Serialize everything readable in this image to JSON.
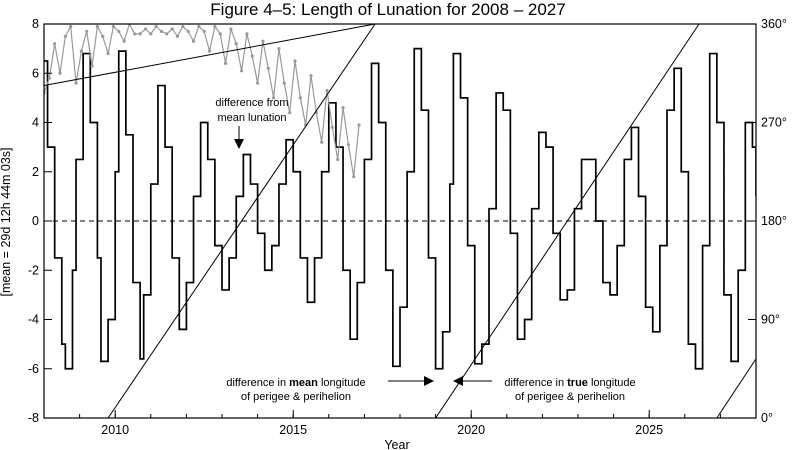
{
  "chart_data": {
    "type": "line",
    "title": "Figure 4–5:  Length of Lunation for 2008 – 2027",
    "xlabel": "Year",
    "ylabel": "[mean = 29d 12h 44m 03s]",
    "xlim": [
      2008.0,
      2028.0
    ],
    "ylim": [
      -8,
      8
    ],
    "x_ticks": [
      2010,
      2015,
      2020,
      2025
    ],
    "y_ticks": [
      -8,
      -6,
      -4,
      -2,
      0,
      2,
      4,
      6,
      8
    ],
    "y_tick_labels": [
      "-8",
      "-6",
      "-4",
      "-2",
      "0",
      "2",
      "4",
      "6",
      "8"
    ],
    "y2_ticks": [
      "0°",
      "90°",
      "180°",
      "270°",
      "360°"
    ],
    "y2lim": [
      0,
      360
    ],
    "zero_line": true,
    "series": [
      {
        "kind": "primary",
        "color": "#000000",
        "x": [
          2008.0,
          2008.1,
          2008.3,
          2008.5,
          2008.6,
          2008.8,
          2008.9,
          2009.1,
          2009.3,
          2009.5,
          2009.6,
          2009.8,
          2010.0,
          2010.1,
          2010.3,
          2010.5,
          2010.7,
          2010.8,
          2011.0,
          2011.2,
          2011.4,
          2011.6,
          2011.8,
          2012.0,
          2012.2,
          2012.4,
          2012.6,
          2012.8,
          2013.0,
          2013.2,
          2013.4,
          2013.6,
          2013.8,
          2014.0,
          2014.2,
          2014.4,
          2014.6,
          2014.8,
          2015.0,
          2015.2,
          2015.4,
          2015.6,
          2015.8,
          2016.0,
          2016.2,
          2016.4,
          2016.6,
          2016.8,
          2017.0,
          2017.2,
          2017.4,
          2017.6,
          2017.8,
          2018.0,
          2018.2,
          2018.4,
          2018.6,
          2018.8,
          2019.0,
          2019.2,
          2019.4,
          2019.5,
          2019.7,
          2019.9,
          2020.1,
          2020.3,
          2020.5,
          2020.7,
          2020.9,
          2021.1,
          2021.3,
          2021.5,
          2021.7,
          2021.9,
          2022.1,
          2022.3,
          2022.5,
          2022.7,
          2022.9,
          2023.1,
          2023.3,
          2023.5,
          2023.7,
          2023.9,
          2024.1,
          2024.3,
          2024.5,
          2024.7,
          2024.9,
          2025.1,
          2025.3,
          2025.5,
          2025.7,
          2025.9,
          2026.1,
          2026.3,
          2026.5,
          2026.7,
          2026.9,
          2027.1,
          2027.3,
          2027.5,
          2027.7,
          2027.9,
          2028.0
        ],
        "y": [
          6.5,
          3.0,
          -1.5,
          -5.0,
          -6.0,
          -2.0,
          2.5,
          6.8,
          4.0,
          -1.5,
          -5.7,
          -4.0,
          2.0,
          6.9,
          3.5,
          -2.5,
          -5.6,
          -3.0,
          1.5,
          5.5,
          3.0,
          -1.5,
          -4.4,
          -2.5,
          1.0,
          4.0,
          2.5,
          -1.0,
          -2.8,
          -1.5,
          1.0,
          2.7,
          1.5,
          -0.5,
          -2.0,
          -1.0,
          1.5,
          3.3,
          2.0,
          -1.5,
          -3.3,
          -1.5,
          2.0,
          4.8,
          3.0,
          -2.0,
          -4.8,
          -2.5,
          2.5,
          6.4,
          4.0,
          -2.0,
          -5.9,
          -3.5,
          2.0,
          7.0,
          4.5,
          -1.5,
          -6.0,
          -4.5,
          1.5,
          6.8,
          5.0,
          -1.0,
          -5.8,
          -5.0,
          0.5,
          5.2,
          4.5,
          -0.5,
          -4.8,
          -4.0,
          0.5,
          3.6,
          3.0,
          -0.5,
          -3.2,
          -2.8,
          0.5,
          2.5,
          2.5,
          0.0,
          -2.5,
          -3.0,
          -1.0,
          2.5,
          3.8,
          1.0,
          -3.5,
          -4.5,
          -1.0,
          4.5,
          6.2,
          2.0,
          -5.0,
          -6.0,
          -1.0,
          6.8,
          4.0,
          -3.0,
          -5.7,
          -2.0,
          4.0,
          3.0,
          1.0
        ]
      },
      {
        "kind": "perigee-sawtooth",
        "color": "#999999",
        "x": [
          2008.0,
          2008.15,
          2008.3,
          2008.45,
          2008.6,
          2008.75,
          2008.9,
          2009.05,
          2009.2,
          2009.35,
          2009.5,
          2009.65,
          2009.8,
          2009.95,
          2010.1,
          2010.25,
          2010.4,
          2010.55,
          2010.7,
          2010.85,
          2011.0,
          2011.15,
          2011.3,
          2011.45,
          2011.6,
          2011.75,
          2011.9,
          2012.05,
          2012.2,
          2012.35,
          2012.5,
          2012.65,
          2012.8,
          2012.95,
          2013.1,
          2013.25,
          2013.4,
          2013.55,
          2013.7,
          2013.85,
          2014.0,
          2014.15,
          2014.3,
          2014.45,
          2014.6,
          2014.75,
          2014.9,
          2015.05,
          2015.2,
          2015.35,
          2015.5,
          2015.65,
          2015.8,
          2015.95,
          2016.1,
          2016.25,
          2016.4,
          2016.55,
          2016.7,
          2016.85
        ],
        "y": [
          5.2,
          5.8,
          7.2,
          6.0,
          7.5,
          7.9,
          5.6,
          6.9,
          7.7,
          6.3,
          7.9,
          7.5,
          6.8,
          7.9,
          7.7,
          7.3,
          8.0,
          7.6,
          7.6,
          7.8,
          7.6,
          7.9,
          7.7,
          7.6,
          7.8,
          7.5,
          7.9,
          7.7,
          7.3,
          7.9,
          7.7,
          6.9,
          7.9,
          7.6,
          6.4,
          7.8,
          7.2,
          6.1,
          7.6,
          6.7,
          5.6,
          7.3,
          6.2,
          5.0,
          7.0,
          5.6,
          4.4,
          6.5,
          5.0,
          3.9,
          5.9,
          4.4,
          3.2,
          5.3,
          3.8,
          2.5,
          4.6,
          3.1,
          1.8,
          3.9
        ]
      },
      {
        "kind": "mean-longitude-line",
        "color": "#000000",
        "x": [
          2008.0,
          2017.3
        ],
        "y": [
          5.5,
          8.0
        ]
      }
    ],
    "annotations": [
      {
        "lines": [
          "difference from",
          "mean lunation"
        ],
        "points_to": [
          2013.4,
          2.8
        ]
      },
      {
        "lines": [
          "difference in mean longitude",
          "of perigee & perihelion"
        ],
        "bold_word": "mean"
      },
      {
        "lines": [
          "difference in true longitude",
          "of perigee & perihelion"
        ],
        "bold_word": "true"
      }
    ]
  }
}
